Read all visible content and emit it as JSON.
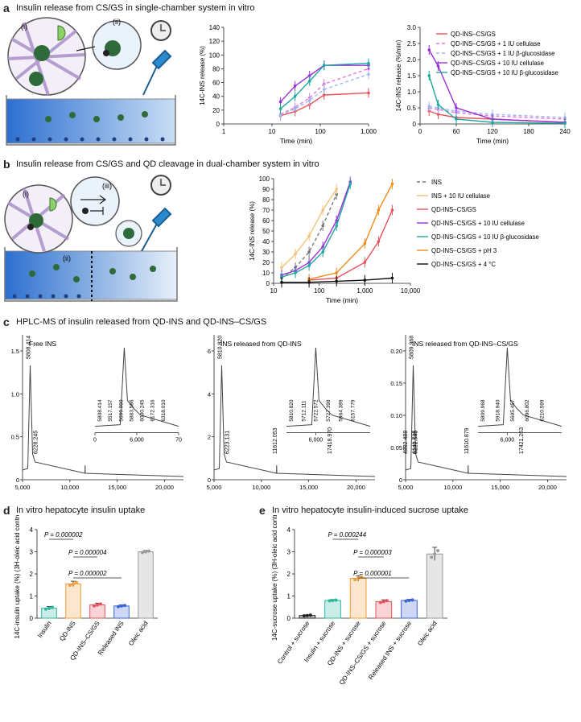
{
  "panels": {
    "a": {
      "letter": "a",
      "title": "Insulin release from CS/GS in single-chamber system in vitro",
      "labels": {
        "i": "(i)",
        "ii": "(ii)"
      }
    },
    "b": {
      "letter": "b",
      "title": "Insulin release from CS/GS and QD cleavage in dual-chamber system in vitro",
      "labels": {
        "i": "(i)",
        "ii": "(ii)",
        "iii": "(iii)"
      }
    },
    "c": {
      "letter": "c",
      "title": "HPLC-MS of insulin released from QD-INS and QD-INS–CS/GS"
    },
    "d": {
      "letter": "d",
      "title": "In vitro hepatocyte insulin uptake"
    },
    "e": {
      "letter": "e",
      "title": "In vitro hepatocyte insulin-induced sucrose uptake"
    }
  },
  "chart_data": [
    {
      "id": "a-left",
      "type": "line",
      "xlabel": "Time (min)",
      "ylabel": "14C-INS release (%)",
      "xscale": "log",
      "xlim": [
        1,
        1000
      ],
      "ylim": [
        0,
        140
      ],
      "xticks": [
        "1",
        "10",
        "100",
        "1,000"
      ],
      "yticks": [
        "0",
        "20",
        "40",
        "60",
        "80",
        "100",
        "120",
        "140"
      ],
      "series": [
        {
          "name": "QD-INS–CS/GS",
          "color": "#e8505b",
          "dash": "",
          "x": [
            15,
            30,
            60,
            120,
            1000
          ],
          "y": [
            12,
            18,
            28,
            42,
            45
          ]
        },
        {
          "name": "QD-INS–CS/GS + 1 IU cellulase",
          "color": "#e27bd8",
          "dash": "4,3",
          "x": [
            15,
            30,
            60,
            120,
            1000
          ],
          "y": [
            14,
            24,
            38,
            58,
            80
          ]
        },
        {
          "name": "QD-INS–CS/GS + 1 IU β-glucosidase",
          "color": "#9fb8f0",
          "dash": "4,3",
          "x": [
            15,
            30,
            60,
            120,
            1000
          ],
          "y": [
            13,
            22,
            34,
            50,
            72
          ]
        },
        {
          "name": "QD-INS–CS/GS + 10 IU cellulase",
          "color": "#9b30d9",
          "dash": "",
          "x": [
            15,
            30,
            60,
            120,
            1000
          ],
          "y": [
            32,
            55,
            70,
            85,
            85
          ]
        },
        {
          "name": "QD-INS–CS/GS + 10 IU β-glucosidase",
          "color": "#1fa6a0",
          "dash": "",
          "x": [
            15,
            30,
            60,
            120,
            1000
          ],
          "y": [
            22,
            40,
            62,
            85,
            88
          ]
        }
      ]
    },
    {
      "id": "a-right",
      "type": "line",
      "xlabel": "Time (min)",
      "ylabel": "14C-INS release (%/min)",
      "xlim": [
        0,
        240
      ],
      "ylim": [
        0,
        3
      ],
      "xticks": [
        "0",
        "60",
        "120",
        "180",
        "240"
      ],
      "yticks": [
        "0",
        "0.5",
        "1.0",
        "1.5",
        "2.0",
        "2.5",
        "3.0"
      ],
      "legend": [
        "QD-INS–CS/GS",
        "QD-INS–CS/GS + 1 IU cellulase",
        "QD-INS–CS/GS + 1 IU β-glucosidase",
        "QD-INS–CS/GS + 10 IU cellulase",
        "QD-INS–CS/GS + 10 IU β-glucosidase"
      ],
      "series": [
        {
          "name": "QD-INS–CS/GS",
          "color": "#e8505b",
          "dash": "",
          "x": [
            15,
            30,
            60,
            120,
            240
          ],
          "y": [
            0.4,
            0.3,
            0.2,
            0.15,
            0.05
          ]
        },
        {
          "name": "QD-INS–CS/GS + 1 IU cellulase",
          "color": "#e27bd8",
          "dash": "4,3",
          "x": [
            15,
            30,
            60,
            120,
            240
          ],
          "y": [
            0.5,
            0.45,
            0.35,
            0.25,
            0.15
          ]
        },
        {
          "name": "QD-INS–CS/GS + 1 IU β-glucosidase",
          "color": "#9fb8f0",
          "dash": "4,3",
          "x": [
            15,
            30,
            60,
            120,
            240
          ],
          "y": [
            0.55,
            0.5,
            0.4,
            0.3,
            0.2
          ]
        },
        {
          "name": "QD-INS–CS/GS + 10 IU cellulase",
          "color": "#9b30d9",
          "dash": "",
          "x": [
            15,
            30,
            60,
            120,
            240
          ],
          "y": [
            2.3,
            1.8,
            0.5,
            0.15,
            0.05
          ]
        },
        {
          "name": "QD-INS–CS/GS + 10 IU β-glucosidase",
          "color": "#1fa6a0",
          "dash": "",
          "x": [
            15,
            30,
            60,
            120,
            240
          ],
          "y": [
            1.5,
            0.6,
            0.15,
            0.05,
            0.02
          ]
        }
      ]
    },
    {
      "id": "b",
      "type": "line",
      "xlabel": "Time (min)",
      "ylabel": "14C-INS release (%)",
      "xscale": "log",
      "xlim": [
        10,
        10000
      ],
      "ylim": [
        0,
        100
      ],
      "xticks": [
        "10",
        "100",
        "1,000",
        "10,000"
      ],
      "yticks": [
        "0",
        "10",
        "20",
        "30",
        "40",
        "50",
        "60",
        "70",
        "80",
        "90",
        "100"
      ],
      "series": [
        {
          "name": "INS",
          "color": "#777777",
          "dash": "4,3",
          "x": [
            15,
            30,
            60,
            120,
            240
          ],
          "y": [
            5,
            15,
            30,
            55,
            85
          ]
        },
        {
          "name": "INS + 10 IU cellulase",
          "color": "#f2c27a",
          "dash": "",
          "x": [
            15,
            30,
            60,
            120,
            240
          ],
          "y": [
            15,
            28,
            45,
            70,
            90
          ]
        },
        {
          "name": "QD-INS–CS/GS",
          "color": "#e8505b",
          "dash": "",
          "x": [
            60,
            240,
            1000,
            2000,
            4000
          ],
          "y": [
            3,
            5,
            20,
            40,
            70
          ]
        },
        {
          "name": "QD-INS–CS/GS + 10 IU cellulase",
          "color": "#9b30d9",
          "dash": "",
          "x": [
            15,
            30,
            60,
            120,
            240,
            480
          ],
          "y": [
            8,
            12,
            20,
            35,
            60,
            97
          ]
        },
        {
          "name": "QD-INS–CS/GS + 10 IU β-glucosidase",
          "color": "#1fa6a0",
          "dash": "",
          "x": [
            15,
            30,
            60,
            120,
            240,
            480
          ],
          "y": [
            6,
            10,
            17,
            30,
            55,
            95
          ]
        },
        {
          "name": "QD-INS–CS/GS + pH 3",
          "color": "#f08c1e",
          "dash": "",
          "x": [
            60,
            240,
            1000,
            2000,
            4000
          ],
          "y": [
            4,
            10,
            38,
            70,
            95
          ]
        },
        {
          "name": "QD-INS–CS/GS + 4 °C",
          "color": "#111111",
          "dash": "",
          "x": [
            15,
            60,
            240,
            1000,
            4000
          ],
          "y": [
            1,
            1,
            2,
            3,
            5
          ]
        }
      ]
    },
    {
      "id": "c-free",
      "type": "line",
      "title": "Free INS",
      "xticks": [
        "5,000",
        "10,000",
        "15,000",
        "20,000"
      ],
      "yticks": [
        "0",
        "0.5",
        "1.0",
        "1.5"
      ],
      "inset_xticks": [
        "0",
        "6,000",
        "70"
      ],
      "main_peak_labels": [
        "5808.414",
        "6228.245"
      ],
      "inset_peak_labels": [
        "5808.414",
        "5517.157",
        "5699.090",
        "5883.586",
        "6030.245",
        "6172.316",
        "6318.010"
      ]
    },
    {
      "id": "c-qd",
      "type": "line",
      "title": "INS released from QD-INS",
      "xticks": [
        "5,000",
        "10,000",
        "15,000",
        "20,000"
      ],
      "yticks": [
        "0",
        "2",
        "4",
        "6"
      ],
      "inset_xticks": [
        "6,000"
      ],
      "main_peak_labels": [
        "5810.820",
        "6223.131",
        "11612.053",
        "17418.970"
      ],
      "inset_peak_labels": [
        "5810.820",
        "5712.111",
        "5722.572",
        "5727.398",
        "5964.389",
        "6157.779"
      ]
    },
    {
      "id": "c-qdcsgs",
      "type": "line",
      "title": "INS released from QD-INS–CS/GS",
      "xticks": [
        "5,000",
        "10,000",
        "15,000",
        "20,000"
      ],
      "yticks": [
        "0",
        "0.05",
        "0.10",
        "0.15",
        "0.20"
      ],
      "inset_xticks": [
        "6,000"
      ],
      "main_peak_labels": [
        "5809.968",
        "4832.488",
        "6222.545",
        "6140.735",
        "11610.879",
        "17421.263"
      ],
      "inset_peak_labels": [
        "5809.968",
        "5918.940",
        "5695.457",
        "6006.802",
        "6210.599"
      ]
    },
    {
      "id": "d",
      "type": "bar",
      "ylabel": "14C-insulin uptake (%) (3H-oleic acid control)",
      "ylim": [
        0,
        4
      ],
      "yticks": [
        "0",
        "1",
        "2",
        "3",
        "4"
      ],
      "categories": [
        "Insulin",
        "QD-INS",
        "QD-INS–CS/GS",
        "Released INS",
        "Oleic acid"
      ],
      "values": [
        0.45,
        1.55,
        0.6,
        0.55,
        3.0
      ],
      "errors": [
        0.08,
        0.12,
        0.08,
        0.05,
        0.06
      ],
      "colors": [
        "#2bb8a0",
        "#f29c38",
        "#e8505b",
        "#3a63d8",
        "#9a9a9a"
      ],
      "pvalues": [
        "P = 0.000002",
        "P = 0.000004",
        "P = 0.000002"
      ]
    },
    {
      "id": "e",
      "type": "bar",
      "ylabel": "14C-sucrose uptake (%) (3H-oleic acid control)",
      "ylim": [
        0,
        4
      ],
      "yticks": [
        "0",
        "1",
        "2",
        "3",
        "4"
      ],
      "categories": [
        "Control + sucrose",
        "Insulin + sucrose",
        "QD-INS + sucrose",
        "QD-INS–CS/GS + sucrose",
        "Released INS + sucrose",
        "Oleic acid"
      ],
      "values": [
        0.12,
        0.8,
        1.8,
        0.75,
        0.8,
        2.9
      ],
      "errors": [
        0.03,
        0.04,
        0.12,
        0.08,
        0.05,
        0.3
      ],
      "colors": [
        "#222222",
        "#2bb8a0",
        "#f29c38",
        "#e8505b",
        "#3a63d8",
        "#9a9a9a"
      ],
      "pvalues": [
        "P = 0.000244",
        "P = 0.000003",
        "P = 0.000001"
      ]
    }
  ]
}
